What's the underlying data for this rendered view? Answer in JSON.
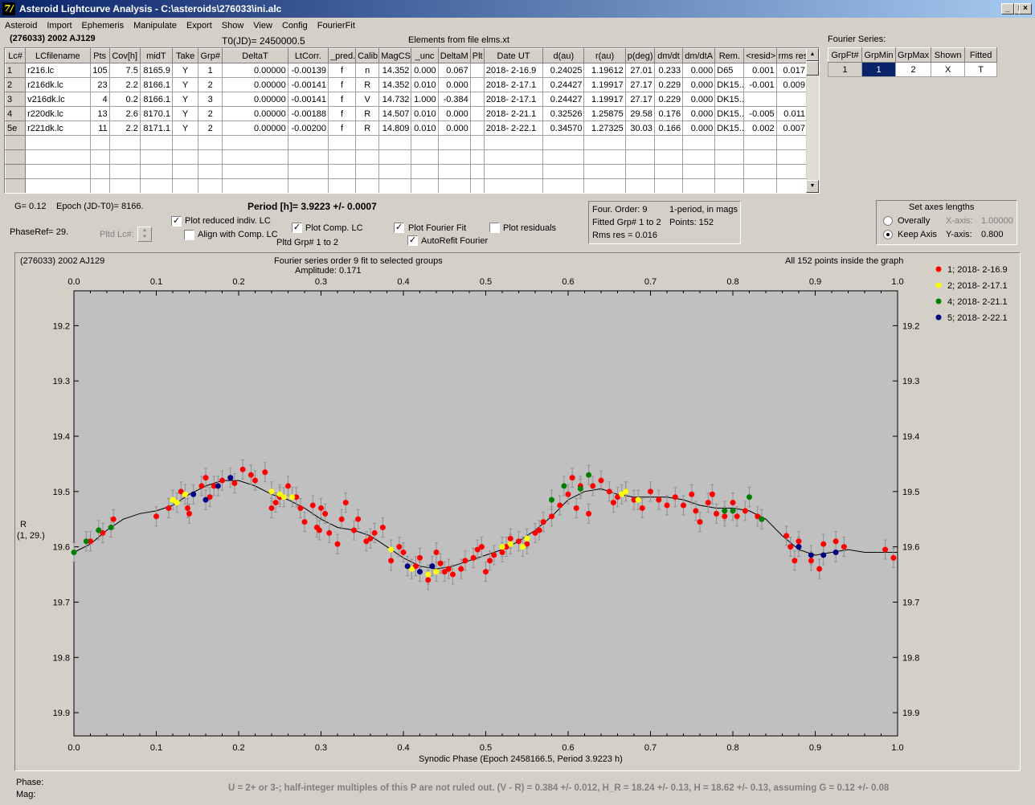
{
  "window": {
    "title": "Asteroid Lightcurve Analysis - C:\\asteroids\\276033\\ini.alc",
    "app_icon_glyph": "7/",
    "min": "_",
    "max": "□",
    "close": "×"
  },
  "menu": [
    "Asteroid",
    "Import",
    "Ephemeris",
    "Manipulate",
    "Export",
    "Show",
    "View",
    "Config",
    "FourierFit"
  ],
  "header": {
    "asteroid_name": "(276033) 2002 AJ129",
    "t0": "T0(JD)= 2450000.5",
    "elements": "Elements from file elms.xt"
  },
  "lc_table": {
    "columns": [
      "Lc#",
      "LCfilename",
      "Pts",
      "Cov[h]",
      "midT",
      "Take",
      "Grp#",
      "DeltaT",
      "LtCorr.",
      "_pred.",
      "Calib.",
      "MagCS",
      "_unc",
      "DeltaM",
      "Plt",
      "Date UT",
      "d(au)",
      "r(au)",
      "p(deg)",
      "dm/dt",
      "dm/dtA",
      "Rem.",
      "<resid>",
      "rms res"
    ],
    "rows": [
      [
        "1",
        "r216.lc",
        "105",
        "7.5",
        "8165.9",
        "Y",
        "1",
        "0.00000",
        "-0.00139",
        "f",
        "n",
        "14.352",
        "0.000",
        "0.067",
        "",
        "2018- 2-16.9",
        "0.24025",
        "1.19612",
        "27.01",
        "0.233",
        "0.000",
        "D65",
        "0.001",
        "0.017"
      ],
      [
        "2",
        "r216dk.lc",
        "23",
        "2.2",
        "8166.1",
        "Y",
        "2",
        "0.00000",
        "-0.00141",
        "f",
        "R",
        "14.352",
        "0.010",
        "0.000",
        "",
        "2018- 2-17.1",
        "0.24427",
        "1.19917",
        "27.17",
        "0.229",
        "0.000",
        "DK15...",
        "-0.001",
        "0.009"
      ],
      [
        "3",
        "v216dk.lc",
        "4",
        "0.2",
        "8166.1",
        "Y",
        "3",
        "0.00000",
        "-0.00141",
        "f",
        "V",
        "14.732",
        "1.000",
        "-0.384",
        "",
        "2018- 2-17.1",
        "0.24427",
        "1.19917",
        "27.17",
        "0.229",
        "0.000",
        "DK15...",
        "",
        ""
      ],
      [
        "4",
        "r220dk.lc",
        "13",
        "2.6",
        "8170.1",
        "Y",
        "2",
        "0.00000",
        "-0.00188",
        "f",
        "R",
        "14.507",
        "0.010",
        "0.000",
        "",
        "2018- 2-21.1",
        "0.32526",
        "1.25875",
        "29.58",
        "0.176",
        "0.000",
        "DK15...",
        "-0.005",
        "0.011"
      ],
      [
        "5e",
        "r221dk.lc",
        "11",
        "2.2",
        "8171.1",
        "Y",
        "2",
        "0.00000",
        "-0.00200",
        "f",
        "R",
        "14.809",
        "0.010",
        "0.000",
        "",
        "2018- 2-22.1",
        "0.34570",
        "1.27325",
        "30.03",
        "0.166",
        "0.000",
        "DK15...",
        "0.002",
        "0.007"
      ]
    ]
  },
  "fourier_series": {
    "label": "Fourier Series:",
    "columns": [
      "GrpFt#",
      "GrpMin",
      "GrpMax",
      "Shown",
      "Fitted"
    ],
    "row": [
      "1",
      "1",
      "2",
      "X",
      "T"
    ]
  },
  "controls": {
    "g_value": "G= 0.12",
    "epoch": "Epoch (JD-T0)= 8166.",
    "period": "Period [h]= 3.9223 +/- 0.0007",
    "phase_ref": "PhaseRef= 29.",
    "pltd_lc": "Pltd Lc#:",
    "plot_reduced": "Plot reduced indiv. LC",
    "align_comp": "Align with Comp. LC",
    "plot_comp": "Plot Comp. LC",
    "pltd_grp": "Pltd Grp#  1   to   2",
    "plot_fourier": "Plot Fourier Fit",
    "autorefit": "AutoRefit Fourier",
    "plot_residuals": "Plot residuals",
    "check": "✓",
    "four_order": "Four. Order:  9",
    "one_period": "1-period, in mags",
    "fitted_grp": "Fitted Grp# 1 to 2",
    "points": "Points: 152",
    "rms_res": "Rms res      = 0.016",
    "axes_title": "Set axes lengths",
    "overally": "Overally",
    "keep_axis": "Keep Axis",
    "x_axis_label": "X-axis:",
    "x_axis_value": "1.00000",
    "y_axis_label": "Y-axis:",
    "y_axis_value": "0.800"
  },
  "plot": {
    "title_left": "(276033) 2002 AJ129",
    "title_center": "Fourier series order 9 fit to selected groups",
    "amplitude": "Amplitude: 0.171",
    "title_right": "All 152 points inside the graph",
    "ylabel_line1": "R",
    "ylabel_line2": "(1, 29.)",
    "xlabel": "Synodic Phase (Epoch 2458166.5, Period 3.9223 h)"
  },
  "chart_data": {
    "type": "scatter",
    "title": "Fourier series order 9 fit to selected groups",
    "xlabel": "Synodic Phase (Epoch 2458166.5, Period 3.9223 h)",
    "ylabel": "R (1, 29.)",
    "xlim": [
      0.0,
      1.0
    ],
    "ylim": [
      19.9,
      19.2
    ],
    "y_inverted": true,
    "x_ticks": [
      "0.0",
      "0.1",
      "0.2",
      "0.3",
      "0.4",
      "0.5",
      "0.6",
      "0.7",
      "0.8",
      "0.9",
      "1.0"
    ],
    "y_ticks": [
      "19.2",
      "19.3",
      "19.4",
      "19.5",
      "19.6",
      "19.7",
      "19.8",
      "19.9"
    ],
    "legend_position": "top-right",
    "series": [
      {
        "name": "1; 2018- 2-16.9",
        "color": "#ff0000",
        "points": [
          [
            0.02,
            19.59
          ],
          [
            0.035,
            19.575
          ],
          [
            0.048,
            19.55
          ],
          [
            0.1,
            19.545
          ],
          [
            0.115,
            19.53
          ],
          [
            0.13,
            19.5
          ],
          [
            0.138,
            19.53
          ],
          [
            0.14,
            19.54
          ],
          [
            0.155,
            19.49
          ],
          [
            0.16,
            19.475
          ],
          [
            0.165,
            19.51
          ],
          [
            0.17,
            19.49
          ],
          [
            0.18,
            19.48
          ],
          [
            0.195,
            19.485
          ],
          [
            0.205,
            19.46
          ],
          [
            0.215,
            19.47
          ],
          [
            0.22,
            19.48
          ],
          [
            0.232,
            19.465
          ],
          [
            0.24,
            19.53
          ],
          [
            0.245,
            19.52
          ],
          [
            0.25,
            19.51
          ],
          [
            0.26,
            19.49
          ],
          [
            0.27,
            19.51
          ],
          [
            0.275,
            19.53
          ],
          [
            0.28,
            19.555
          ],
          [
            0.29,
            19.525
          ],
          [
            0.295,
            19.565
          ],
          [
            0.298,
            19.57
          ],
          [
            0.3,
            19.53
          ],
          [
            0.305,
            19.54
          ],
          [
            0.31,
            19.575
          ],
          [
            0.32,
            19.595
          ],
          [
            0.325,
            19.55
          ],
          [
            0.33,
            19.52
          ],
          [
            0.34,
            19.57
          ],
          [
            0.345,
            19.55
          ],
          [
            0.355,
            19.59
          ],
          [
            0.36,
            19.585
          ],
          [
            0.365,
            19.575
          ],
          [
            0.375,
            19.565
          ],
          [
            0.385,
            19.625
          ],
          [
            0.395,
            19.6
          ],
          [
            0.4,
            19.61
          ],
          [
            0.415,
            19.635
          ],
          [
            0.42,
            19.62
          ],
          [
            0.43,
            19.66
          ],
          [
            0.44,
            19.61
          ],
          [
            0.445,
            19.63
          ],
          [
            0.45,
            19.645
          ],
          [
            0.455,
            19.64
          ],
          [
            0.46,
            19.65
          ],
          [
            0.47,
            19.64
          ],
          [
            0.475,
            19.625
          ],
          [
            0.485,
            19.62
          ],
          [
            0.49,
            19.605
          ],
          [
            0.495,
            19.6
          ],
          [
            0.5,
            19.645
          ],
          [
            0.505,
            19.625
          ],
          [
            0.51,
            19.615
          ],
          [
            0.52,
            19.61
          ],
          [
            0.525,
            19.6
          ],
          [
            0.53,
            19.585
          ],
          [
            0.54,
            19.59
          ],
          [
            0.55,
            19.595
          ],
          [
            0.56,
            19.575
          ],
          [
            0.565,
            19.57
          ],
          [
            0.57,
            19.555
          ],
          [
            0.58,
            19.545
          ],
          [
            0.59,
            19.525
          ],
          [
            0.6,
            19.505
          ],
          [
            0.605,
            19.475
          ],
          [
            0.61,
            19.53
          ],
          [
            0.615,
            19.49
          ],
          [
            0.625,
            19.54
          ],
          [
            0.63,
            19.49
          ],
          [
            0.64,
            19.48
          ],
          [
            0.65,
            19.5
          ],
          [
            0.655,
            19.52
          ],
          [
            0.66,
            19.51
          ],
          [
            0.67,
            19.5
          ],
          [
            0.68,
            19.515
          ],
          [
            0.69,
            19.53
          ],
          [
            0.7,
            19.5
          ],
          [
            0.71,
            19.515
          ],
          [
            0.72,
            19.525
          ],
          [
            0.73,
            19.51
          ],
          [
            0.74,
            19.525
          ],
          [
            0.75,
            19.505
          ],
          [
            0.755,
            19.535
          ],
          [
            0.76,
            19.555
          ],
          [
            0.77,
            19.52
          ],
          [
            0.775,
            19.505
          ],
          [
            0.78,
            19.54
          ],
          [
            0.79,
            19.545
          ],
          [
            0.8,
            19.52
          ],
          [
            0.805,
            19.545
          ],
          [
            0.815,
            19.535
          ],
          [
            0.83,
            19.545
          ],
          [
            0.865,
            19.58
          ],
          [
            0.87,
            19.6
          ],
          [
            0.875,
            19.625
          ],
          [
            0.88,
            19.59
          ],
          [
            0.895,
            19.625
          ],
          [
            0.905,
            19.64
          ],
          [
            0.91,
            19.595
          ],
          [
            0.925,
            19.59
          ],
          [
            0.935,
            19.6
          ],
          [
            0.985,
            19.605
          ],
          [
            0.995,
            19.62
          ]
        ]
      },
      {
        "name": "2; 2018- 2-17.1",
        "color": "#ffff00",
        "points": [
          [
            0.12,
            19.515
          ],
          [
            0.125,
            19.52
          ],
          [
            0.135,
            19.505
          ],
          [
            0.24,
            19.5
          ],
          [
            0.25,
            19.505
          ],
          [
            0.255,
            19.51
          ],
          [
            0.265,
            19.51
          ],
          [
            0.385,
            19.605
          ],
          [
            0.41,
            19.64
          ],
          [
            0.43,
            19.65
          ],
          [
            0.44,
            19.645
          ],
          [
            0.52,
            19.6
          ],
          [
            0.53,
            19.595
          ],
          [
            0.545,
            19.6
          ],
          [
            0.55,
            19.585
          ],
          [
            0.665,
            19.505
          ],
          [
            0.67,
            19.5
          ],
          [
            0.685,
            19.515
          ]
        ]
      },
      {
        "name": "4; 2018- 2-21.1",
        "color": "#008000",
        "points": [
          [
            0.0,
            19.61
          ],
          [
            0.015,
            19.59
          ],
          [
            0.03,
            19.57
          ],
          [
            0.045,
            19.565
          ],
          [
            0.58,
            19.515
          ],
          [
            0.595,
            19.49
          ],
          [
            0.615,
            19.495
          ],
          [
            0.625,
            19.47
          ],
          [
            0.79,
            19.535
          ],
          [
            0.8,
            19.535
          ],
          [
            0.82,
            19.51
          ],
          [
            0.835,
            19.55
          ]
        ]
      },
      {
        "name": "5; 2018- 2-22.1",
        "color": "#000080",
        "points": [
          [
            0.145,
            19.505
          ],
          [
            0.16,
            19.515
          ],
          [
            0.175,
            19.49
          ],
          [
            0.19,
            19.475
          ],
          [
            0.405,
            19.635
          ],
          [
            0.42,
            19.645
          ],
          [
            0.435,
            19.635
          ],
          [
            0.88,
            19.6
          ],
          [
            0.895,
            19.615
          ],
          [
            0.91,
            19.615
          ],
          [
            0.925,
            19.61
          ]
        ]
      }
    ],
    "fit_curve": {
      "name": "Fourier fit",
      "color": "#000000",
      "points": [
        [
          0.0,
          19.61
        ],
        [
          0.02,
          19.595
        ],
        [
          0.04,
          19.57
        ],
        [
          0.06,
          19.55
        ],
        [
          0.08,
          19.54
        ],
        [
          0.1,
          19.535
        ],
        [
          0.12,
          19.525
        ],
        [
          0.14,
          19.505
        ],
        [
          0.16,
          19.49
        ],
        [
          0.18,
          19.48
        ],
        [
          0.2,
          19.48
        ],
        [
          0.22,
          19.49
        ],
        [
          0.24,
          19.505
        ],
        [
          0.26,
          19.515
        ],
        [
          0.28,
          19.53
        ],
        [
          0.3,
          19.55
        ],
        [
          0.32,
          19.565
        ],
        [
          0.34,
          19.57
        ],
        [
          0.36,
          19.58
        ],
        [
          0.38,
          19.6
        ],
        [
          0.4,
          19.62
        ],
        [
          0.42,
          19.635
        ],
        [
          0.44,
          19.64
        ],
        [
          0.46,
          19.635
        ],
        [
          0.48,
          19.625
        ],
        [
          0.5,
          19.615
        ],
        [
          0.52,
          19.605
        ],
        [
          0.54,
          19.59
        ],
        [
          0.56,
          19.57
        ],
        [
          0.58,
          19.545
        ],
        [
          0.6,
          19.515
        ],
        [
          0.62,
          19.5
        ],
        [
          0.64,
          19.495
        ],
        [
          0.66,
          19.505
        ],
        [
          0.68,
          19.51
        ],
        [
          0.7,
          19.51
        ],
        [
          0.72,
          19.51
        ],
        [
          0.74,
          19.515
        ],
        [
          0.76,
          19.525
        ],
        [
          0.78,
          19.53
        ],
        [
          0.8,
          19.53
        ],
        [
          0.82,
          19.535
        ],
        [
          0.84,
          19.55
        ],
        [
          0.86,
          19.58
        ],
        [
          0.88,
          19.605
        ],
        [
          0.9,
          19.615
        ],
        [
          0.92,
          19.61
        ],
        [
          0.94,
          19.605
        ],
        [
          0.96,
          19.61
        ],
        [
          0.98,
          19.61
        ],
        [
          1.0,
          19.61
        ]
      ]
    }
  },
  "footer": {
    "phase_label": "Phase:",
    "mag_label": "Mag:",
    "note": "U = 2+ or 3-; half-integer multiples of this P are not ruled out.  (V - R) = 0.384 +/- 0.012, H_R = 18.24 +/- 0.13, H = 18.62 +/- 0.13, assuming G = 0.12 +/- 0.08"
  }
}
